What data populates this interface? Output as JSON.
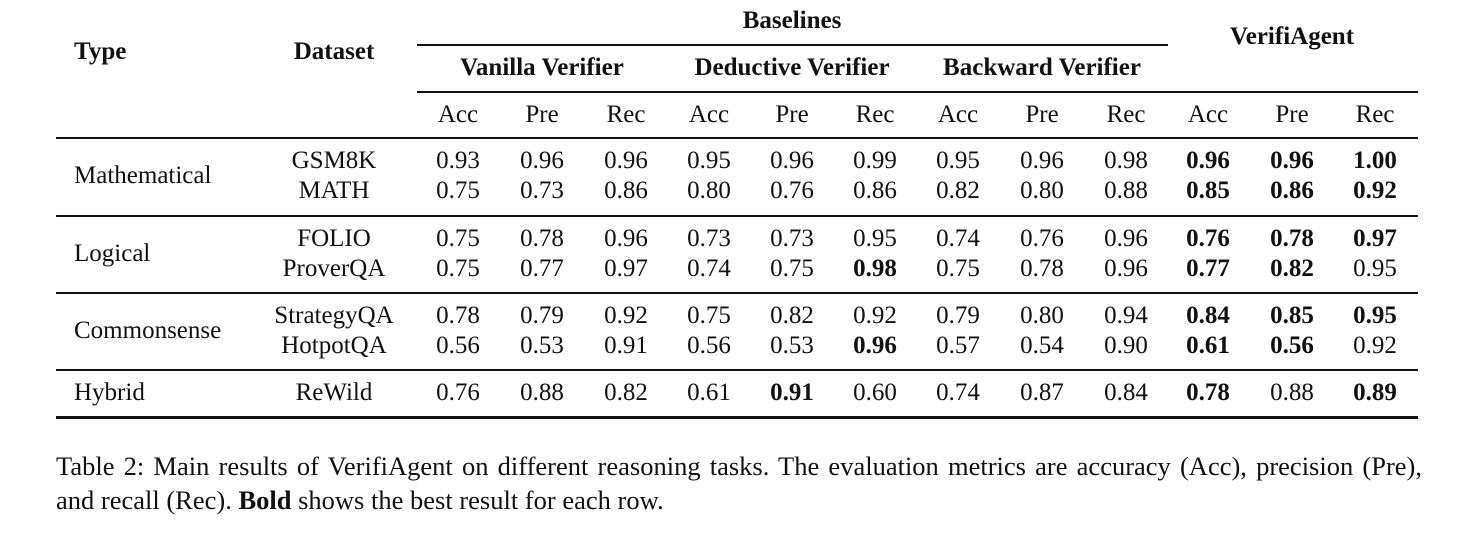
{
  "table": {
    "header": {
      "type": "Type",
      "dataset": "Dataset",
      "baselines": "Baselines",
      "groups": [
        "Vanilla Verifier",
        "Deductive Verifier",
        "Backward Verifier"
      ],
      "verifiagent": "VerifiAgent",
      "metrics": [
        "Acc",
        "Pre",
        "Rec"
      ]
    },
    "sections": [
      {
        "type": "Mathematical",
        "rows": [
          {
            "dataset": "GSM8K",
            "values": [
              "0.93",
              "0.96",
              "0.96",
              "0.95",
              "0.96",
              "0.99",
              "0.95",
              "0.96",
              "0.98",
              "0.96",
              "0.96",
              "1.00"
            ],
            "bold": [
              false,
              false,
              false,
              false,
              false,
              false,
              false,
              false,
              false,
              true,
              true,
              true
            ]
          },
          {
            "dataset": "MATH",
            "values": [
              "0.75",
              "0.73",
              "0.86",
              "0.80",
              "0.76",
              "0.86",
              "0.82",
              "0.80",
              "0.88",
              "0.85",
              "0.86",
              "0.92"
            ],
            "bold": [
              false,
              false,
              false,
              false,
              false,
              false,
              false,
              false,
              false,
              true,
              true,
              true
            ]
          }
        ]
      },
      {
        "type": "Logical",
        "rows": [
          {
            "dataset": "FOLIO",
            "values": [
              "0.75",
              "0.78",
              "0.96",
              "0.73",
              "0.73",
              "0.95",
              "0.74",
              "0.76",
              "0.96",
              "0.76",
              "0.78",
              "0.97"
            ],
            "bold": [
              false,
              false,
              false,
              false,
              false,
              false,
              false,
              false,
              false,
              true,
              true,
              true
            ]
          },
          {
            "dataset": "ProverQA",
            "values": [
              "0.75",
              "0.77",
              "0.97",
              "0.74",
              "0.75",
              "0.98",
              "0.75",
              "0.78",
              "0.96",
              "0.77",
              "0.82",
              "0.95"
            ],
            "bold": [
              false,
              false,
              false,
              false,
              false,
              true,
              false,
              false,
              false,
              true,
              true,
              false
            ]
          }
        ]
      },
      {
        "type": "Commonsense",
        "rows": [
          {
            "dataset": "StrategyQA",
            "values": [
              "0.78",
              "0.79",
              "0.92",
              "0.75",
              "0.82",
              "0.92",
              "0.79",
              "0.80",
              "0.94",
              "0.84",
              "0.85",
              "0.95"
            ],
            "bold": [
              false,
              false,
              false,
              false,
              false,
              false,
              false,
              false,
              false,
              true,
              true,
              true
            ]
          },
          {
            "dataset": "HotpotQA",
            "values": [
              "0.56",
              "0.53",
              "0.91",
              "0.56",
              "0.53",
              "0.96",
              "0.57",
              "0.54",
              "0.90",
              "0.61",
              "0.56",
              "0.92"
            ],
            "bold": [
              false,
              false,
              false,
              false,
              false,
              true,
              false,
              false,
              false,
              true,
              true,
              false
            ]
          }
        ]
      },
      {
        "type": "Hybrid",
        "rows": [
          {
            "dataset": "ReWild",
            "values": [
              "0.76",
              "0.88",
              "0.82",
              "0.61",
              "0.91",
              "0.60",
              "0.74",
              "0.87",
              "0.84",
              "0.78",
              "0.88",
              "0.89"
            ],
            "bold": [
              false,
              false,
              false,
              false,
              true,
              false,
              false,
              false,
              false,
              true,
              false,
              true
            ]
          }
        ]
      }
    ]
  },
  "caption": {
    "part1": "Table 2: Main results of VerifiAgent on different reasoning tasks. The evaluation metrics are accuracy (Acc), precision (Pre), and recall (Rec).",
    "bold_word": "Bold",
    "part2": "shows the best result for each row."
  }
}
